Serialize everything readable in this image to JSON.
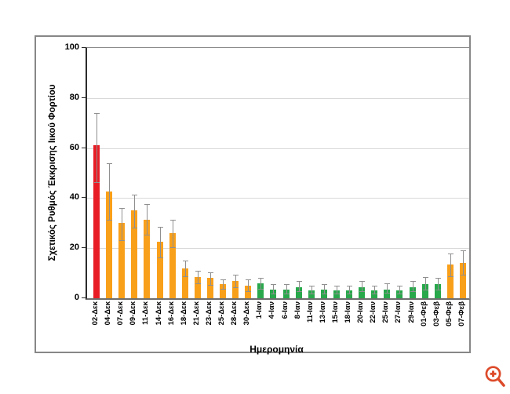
{
  "chart_data": {
    "type": "bar",
    "title": "",
    "xlabel": "Ημερομηνία",
    "ylabel": "Σχετικός Ρυθμός Έκκρισης Ιικού Φορτίου",
    "ylim": [
      0,
      100
    ],
    "yticks": [
      0,
      20,
      40,
      60,
      80,
      100
    ],
    "grid": true,
    "legend": "none",
    "categories": [
      "02-Δεκ",
      "04-Δεκ",
      "07-Δεκ",
      "09-Δεκ",
      "11-Δεκ",
      "14-Δεκ",
      "16-Δεκ",
      "18-Δεκ",
      "21-Δεκ",
      "23-Δεκ",
      "25-Δεκ",
      "28-Δεκ",
      "30-Δεκ",
      "1-Ιαν",
      "4-Ιαν",
      "6-Ιαν",
      "8-Ιαν",
      "11-Ιαν",
      "13-Ιαν",
      "15-Ιαν",
      "18-Ιαν",
      "20-Ιαν",
      "22-Ιαν",
      "25-Ιαν",
      "27-Ιαν",
      "29-Ιαν",
      "01-Φεβ",
      "03-Φεβ",
      "05-Φεβ",
      "07-Φεβ"
    ],
    "values": [
      61,
      42.5,
      30,
      35,
      31.5,
      22.5,
      26,
      12,
      8.5,
      8,
      5.5,
      7,
      5,
      6,
      3.5,
      3.5,
      4.5,
      3,
      3.5,
      3,
      3,
      4.5,
      3,
      3.5,
      3,
      4.5,
      5.5,
      5.5,
      13.5,
      14
    ],
    "error_hi": [
      74,
      54,
      36,
      41.5,
      37.5,
      28.5,
      31.5,
      15,
      11,
      10.5,
      7.5,
      9.5,
      7.5,
      8,
      5.5,
      5.5,
      7,
      5,
      5.5,
      5,
      5,
      7,
      5,
      6,
      5,
      7,
      8.5,
      8,
      18,
      19
    ],
    "error_lo": [
      46,
      31,
      23,
      28,
      25,
      16,
      20,
      8.5,
      5.5,
      5,
      3.5,
      4,
      2.5,
      3.5,
      1.5,
      1.5,
      2.5,
      1.5,
      1.5,
      1.5,
      1.5,
      2.5,
      1.5,
      2,
      1.5,
      2.5,
      3,
      3,
      8.5,
      9
    ],
    "bar_colors": [
      "#e81c25",
      "#f9a01b",
      "#f9a01b",
      "#f9a01b",
      "#f9a01b",
      "#f9a01b",
      "#f9a01b",
      "#f9a01b",
      "#f9a01b",
      "#f9a01b",
      "#f9a01b",
      "#f9a01b",
      "#f9a01b",
      "#28a84b",
      "#28a84b",
      "#28a84b",
      "#28a84b",
      "#28a84b",
      "#28a84b",
      "#28a84b",
      "#28a84b",
      "#28a84b",
      "#28a84b",
      "#28a84b",
      "#28a84b",
      "#28a84b",
      "#28a84b",
      "#28a84b",
      "#f9a01b",
      "#f9a01b"
    ],
    "colors": {
      "highlight_red": "#e81c25",
      "orange": "#f9a01b",
      "green": "#28a84b",
      "gridline": "#d9d9d9",
      "error_bar": "#8f8f8f",
      "frame_border": "#878787"
    }
  },
  "overlay": {
    "zoom_icon_color": "#dd4b2a",
    "zoom_icon_name": "magnifier-plus-icon"
  }
}
